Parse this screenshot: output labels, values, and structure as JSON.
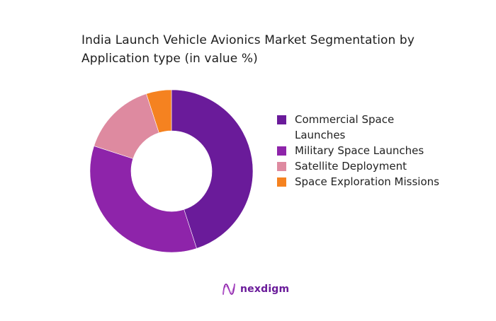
{
  "header": {
    "title": "India Launch Vehicle Avionics Market Segmentation by Application type (in value %)"
  },
  "legend": {
    "items": [
      {
        "label": "Commercial Space Launches",
        "color": "#6a1b9a"
      },
      {
        "label": "Military Space Launches",
        "color": "#8e24aa"
      },
      {
        "label": "Satellite Deployment",
        "color": "#de8aa0"
      },
      {
        "label": "Space Exploration Missions",
        "color": "#f58220"
      }
    ]
  },
  "footer": {
    "brand": "nexdigm",
    "brand_color": "#6a1b9a"
  },
  "chart_data": {
    "type": "pie",
    "subtype": "donut",
    "title": "India Launch Vehicle Avionics Market Segmentation by Application type (in value %)",
    "categories": [
      "Commercial Space Launches",
      "Military Space Launches",
      "Satellite Deployment",
      "Space Exploration Missions"
    ],
    "values": [
      45,
      35,
      15,
      5
    ],
    "colors": [
      "#6a1b9a",
      "#8e24aa",
      "#de8aa0",
      "#f58220"
    ],
    "unit": "%",
    "start_angle": "12 o'clock, clockwise",
    "legend_position": "right",
    "data_labels": false
  }
}
